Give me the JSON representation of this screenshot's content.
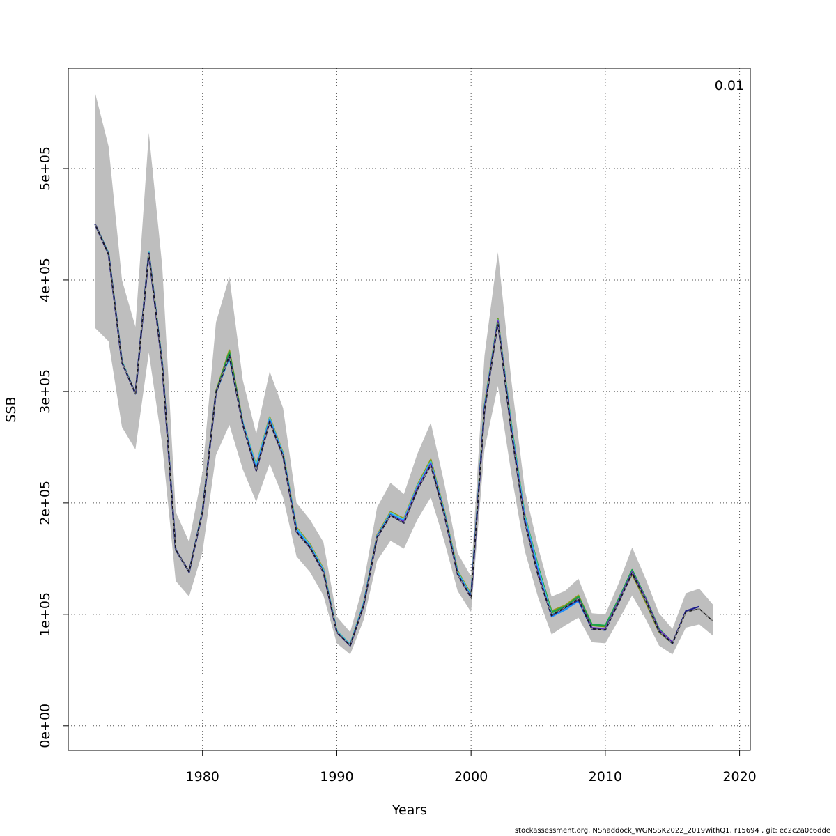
{
  "chart_data": {
    "type": "line",
    "xlabel": "Years",
    "ylabel": "SSB",
    "corner_label": "0.01",
    "xlim": [
      1970.0,
      2020.8
    ],
    "ylim": [
      -22000,
      590000
    ],
    "x_ticks": [
      1980,
      1990,
      2000,
      2010,
      2020
    ],
    "y_ticks": [
      0,
      100000,
      200000,
      300000,
      400000,
      500000
    ],
    "y_tick_labels": [
      "0e+00",
      "1e+05",
      "2e+05",
      "3e+05",
      "4e+05",
      "5e+05"
    ],
    "grid": true,
    "colors": {
      "band": "#bebebe",
      "ref": "#000000",
      "peel_1": "#1c1c8c",
      "peel_2": "#7a2fd0",
      "peel_3": "#1e90ff",
      "peel_4": "#4fd0d8",
      "peel_5": "#1aa34a",
      "peel_6": "#6a9a20",
      "peel_7": "#9a9a1a"
    },
    "x": [
      1972,
      1973,
      1974,
      1975,
      1976,
      1977,
      1978,
      1979,
      1980,
      1981,
      1982,
      1983,
      1984,
      1985,
      1986,
      1987,
      1988,
      1989,
      1990,
      1991,
      1992,
      1993,
      1994,
      1995,
      1996,
      1997,
      1998,
      1999,
      2000,
      2001,
      2002,
      2003,
      2004,
      2005,
      2006,
      2007,
      2008,
      2009,
      2010,
      2011,
      2012,
      2013,
      2014,
      2015,
      2016,
      2017,
      2018
    ],
    "band_upper": [
      568000,
      520000,
      400000,
      358000,
      532000,
      412000,
      192000,
      165000,
      228000,
      362000,
      403000,
      310000,
      262000,
      318000,
      285000,
      200000,
      185000,
      165000,
      98000,
      84000,
      128000,
      196000,
      218000,
      208000,
      244000,
      272000,
      218000,
      155000,
      134000,
      332000,
      425000,
      310000,
      212000,
      160000,
      116000,
      121000,
      132000,
      101000,
      100000,
      128000,
      160000,
      132000,
      101000,
      87000,
      119000,
      123000,
      109000
    ],
    "band_lower": [
      357000,
      345000,
      268000,
      248000,
      335000,
      252000,
      130000,
      116000,
      156000,
      243000,
      270000,
      230000,
      201000,
      235000,
      205000,
      152000,
      138000,
      117000,
      74000,
      64000,
      95000,
      148000,
      166000,
      159000,
      185000,
      205000,
      166000,
      121000,
      102000,
      248000,
      305000,
      226000,
      157000,
      115000,
      82000,
      90000,
      97000,
      75000,
      74000,
      95000,
      117000,
      96000,
      72000,
      64000,
      88000,
      91000,
      81000
    ],
    "series": [
      {
        "values": [
          450000,
          423000,
          326000,
          298000,
          424000,
          323000,
          158000,
          138000,
          192000,
          299000,
          332000,
          270000,
          229000,
          273000,
          242000,
          174000,
          160000,
          138000,
          84000,
          72000,
          108000,
          169000,
          189000,
          182000,
          212000,
          234000,
          190000,
          136000,
          115000,
          283000,
          362000,
          264000,
          183000,
          135000,
          99000,
          106000,
          114000,
          87000,
          86000,
          111000,
          137000,
          113000,
          85000,
          74000,
          102000,
          105000,
          94000
        ]
      },
      {
        "values": [
          450000,
          423000,
          326000,
          298000,
          424000,
          323000,
          158000,
          138000,
          192000,
          299000,
          332000,
          270000,
          229000,
          273000,
          242000,
          174000,
          160000,
          138000,
          84000,
          72000,
          108000,
          169000,
          189000,
          182000,
          212000,
          234000,
          190000,
          136000,
          115000,
          283000,
          362000,
          264000,
          183000,
          135000,
          99000,
          106000,
          113000,
          87000,
          86000,
          111000,
          137000,
          113000,
          85000,
          74000,
          103000,
          107000,
          null
        ]
      },
      {
        "values": [
          450000,
          423000,
          326000,
          298000,
          424000,
          323000,
          158000,
          138000,
          192000,
          299000,
          332000,
          270000,
          229000,
          273000,
          242000,
          174000,
          160000,
          138000,
          84000,
          72000,
          108000,
          169000,
          189000,
          183000,
          213000,
          235000,
          190000,
          136000,
          115000,
          284000,
          363000,
          265000,
          184000,
          136000,
          99000,
          106000,
          114000,
          88000,
          87000,
          112000,
          138000,
          114000,
          86000,
          75000,
          null,
          null,
          null
        ]
      },
      {
        "values": [
          450000,
          423000,
          326000,
          298000,
          424000,
          324000,
          158000,
          138000,
          192000,
          299000,
          331000,
          271000,
          231000,
          275000,
          243000,
          176000,
          161000,
          139000,
          84000,
          72000,
          109000,
          170000,
          190000,
          184000,
          214000,
          236000,
          191000,
          137000,
          116000,
          285000,
          363000,
          266000,
          186000,
          139000,
          98000,
          104000,
          112000,
          87000,
          86000,
          112000,
          138000,
          114000,
          85000,
          74000,
          null,
          null,
          null
        ]
      },
      {
        "values": [
          450000,
          424000,
          327000,
          298000,
          425000,
          324000,
          158000,
          138000,
          193000,
          299000,
          330000,
          272000,
          233000,
          276000,
          244000,
          177000,
          162000,
          140000,
          85000,
          73000,
          110000,
          170000,
          191000,
          185000,
          215000,
          237000,
          192000,
          138000,
          117000,
          286000,
          364000,
          268000,
          188000,
          141000,
          100000,
          105000,
          114000,
          null,
          null,
          null,
          null,
          null,
          null,
          null,
          null,
          null,
          null
        ]
      },
      {
        "values": [
          450000,
          424000,
          327000,
          298000,
          425000,
          325000,
          158000,
          138000,
          193000,
          299000,
          335000,
          271000,
          232000,
          276000,
          244000,
          177000,
          162000,
          140000,
          85000,
          73000,
          110000,
          170000,
          191000,
          185000,
          215000,
          237000,
          192000,
          138000,
          117000,
          286000,
          364000,
          270000,
          189000,
          143000,
          102000,
          107000,
          116000,
          91000,
          90000,
          114000,
          140000,
          115000,
          87000,
          75000,
          null,
          null,
          null
        ]
      },
      {
        "values": [
          450000,
          424000,
          327000,
          298000,
          425000,
          325000,
          158000,
          138000,
          193000,
          300000,
          336000,
          272000,
          233000,
          276000,
          244000,
          177000,
          162000,
          140000,
          85000,
          73000,
          110000,
          170000,
          191000,
          185000,
          215000,
          238000,
          193000,
          139000,
          117000,
          287000,
          365000,
          268000,
          188000,
          141000,
          101000,
          106000,
          115000,
          90000,
          89000,
          113000,
          137000,
          112000,
          85000,
          74000,
          null,
          null,
          null
        ]
      },
      {
        "values": [
          450000,
          424000,
          327000,
          298000,
          425000,
          325000,
          158000,
          138000,
          193000,
          300000,
          337000,
          272000,
          234000,
          277000,
          245000,
          178000,
          163000,
          141000,
          85000,
          73000,
          110000,
          171000,
          192000,
          186000,
          216000,
          239000,
          193000,
          139000,
          118000,
          287000,
          365000,
          269000,
          189000,
          142000,
          103000,
          108000,
          117000,
          91000,
          89000,
          113000,
          136000,
          111000,
          84000,
          74000,
          null,
          null,
          null
        ]
      }
    ]
  },
  "footer": "stockassessment.org, NShaddock_WGNSSK2022_2019withQ1, r15694 , git: ec2c2a0c6dde"
}
